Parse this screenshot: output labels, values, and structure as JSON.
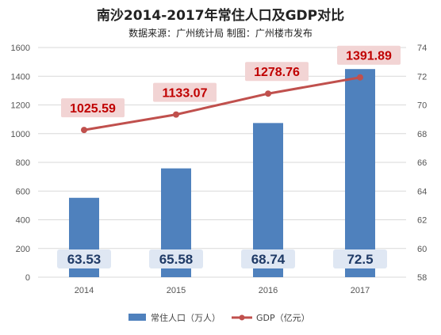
{
  "chart_data": {
    "type": "bar",
    "title": "南沙2014-2017年常住人口及GDP对比",
    "subtitle": "数据来源：广州统计局 制图：广州楼市发布",
    "categories": [
      "2014",
      "2015",
      "2016",
      "2017"
    ],
    "series": [
      {
        "name": "常住人口（万人）",
        "type": "bar",
        "axis": "right",
        "values": [
          63.53,
          65.58,
          68.74,
          72.5
        ],
        "labels": [
          "63.53",
          "65.58",
          "68.74",
          "72.5"
        ]
      },
      {
        "name": "GDP（亿元）",
        "type": "line",
        "axis": "left",
        "values": [
          1025.59,
          1133.07,
          1278.76,
          1391.89
        ],
        "labels": [
          "1025.59",
          "1133.07",
          "1278.76",
          "1391.89"
        ]
      }
    ],
    "left_axis": {
      "min": 0,
      "max": 1600,
      "ticks": [
        "0",
        "200",
        "400",
        "600",
        "800",
        "1000",
        "1200",
        "1400",
        "1600"
      ]
    },
    "right_axis": {
      "min": 58,
      "max": 74,
      "ticks": [
        "58",
        "60",
        "62",
        "64",
        "66",
        "68",
        "70",
        "72",
        "74"
      ]
    },
    "grid": true,
    "legend_position": "bottom",
    "colors": {
      "bar": "#4f81bd",
      "line": "#c0504d",
      "point_label": "#c00000"
    }
  }
}
